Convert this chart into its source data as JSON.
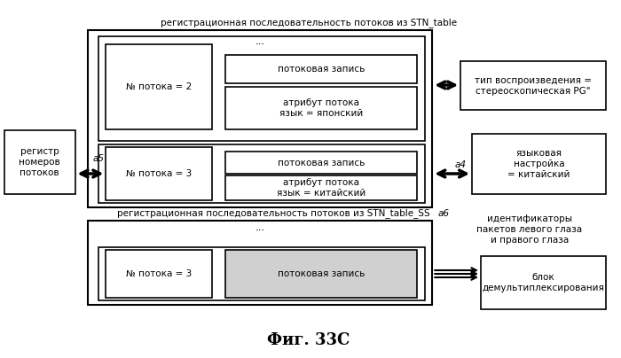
{
  "title": "Фиг. 33С",
  "bg_color": "#ffffff",
  "text_color": "#000000",
  "top_label": "регистрационная последовательность потоков из STN_table",
  "bottom_label": "регистрационная последовательность потоков из STN_table_SS",
  "right_top_label": "тип воспроизведения =\nстереоскопическая PG\"",
  "right_mid_label": "языковая\nнастройка\n= китайский",
  "right_bot_label1": "идентификаторы\nпакетов левого глаза\nи правого глаза",
  "right_bot_label2": "блок\nдемультиплексирования",
  "left_label": "регистр\nномеров\nпотоков",
  "a4": "a4",
  "a5": "a5",
  "a6": "a6",
  "stream1_num": "№ потока = 2",
  "stream2_num": "№ потока = 3",
  "stream3_num": "№ потока = 3",
  "stream_record": "потоковая запись",
  "stream_attr1": "атрибут потока\nязык = японский",
  "stream_attr2": "атрибут потока\nязык = китайский",
  "stream_record3": "потоковая запись",
  "dots": "...",
  "fontsize": 7.5,
  "title_fontsize": 13
}
